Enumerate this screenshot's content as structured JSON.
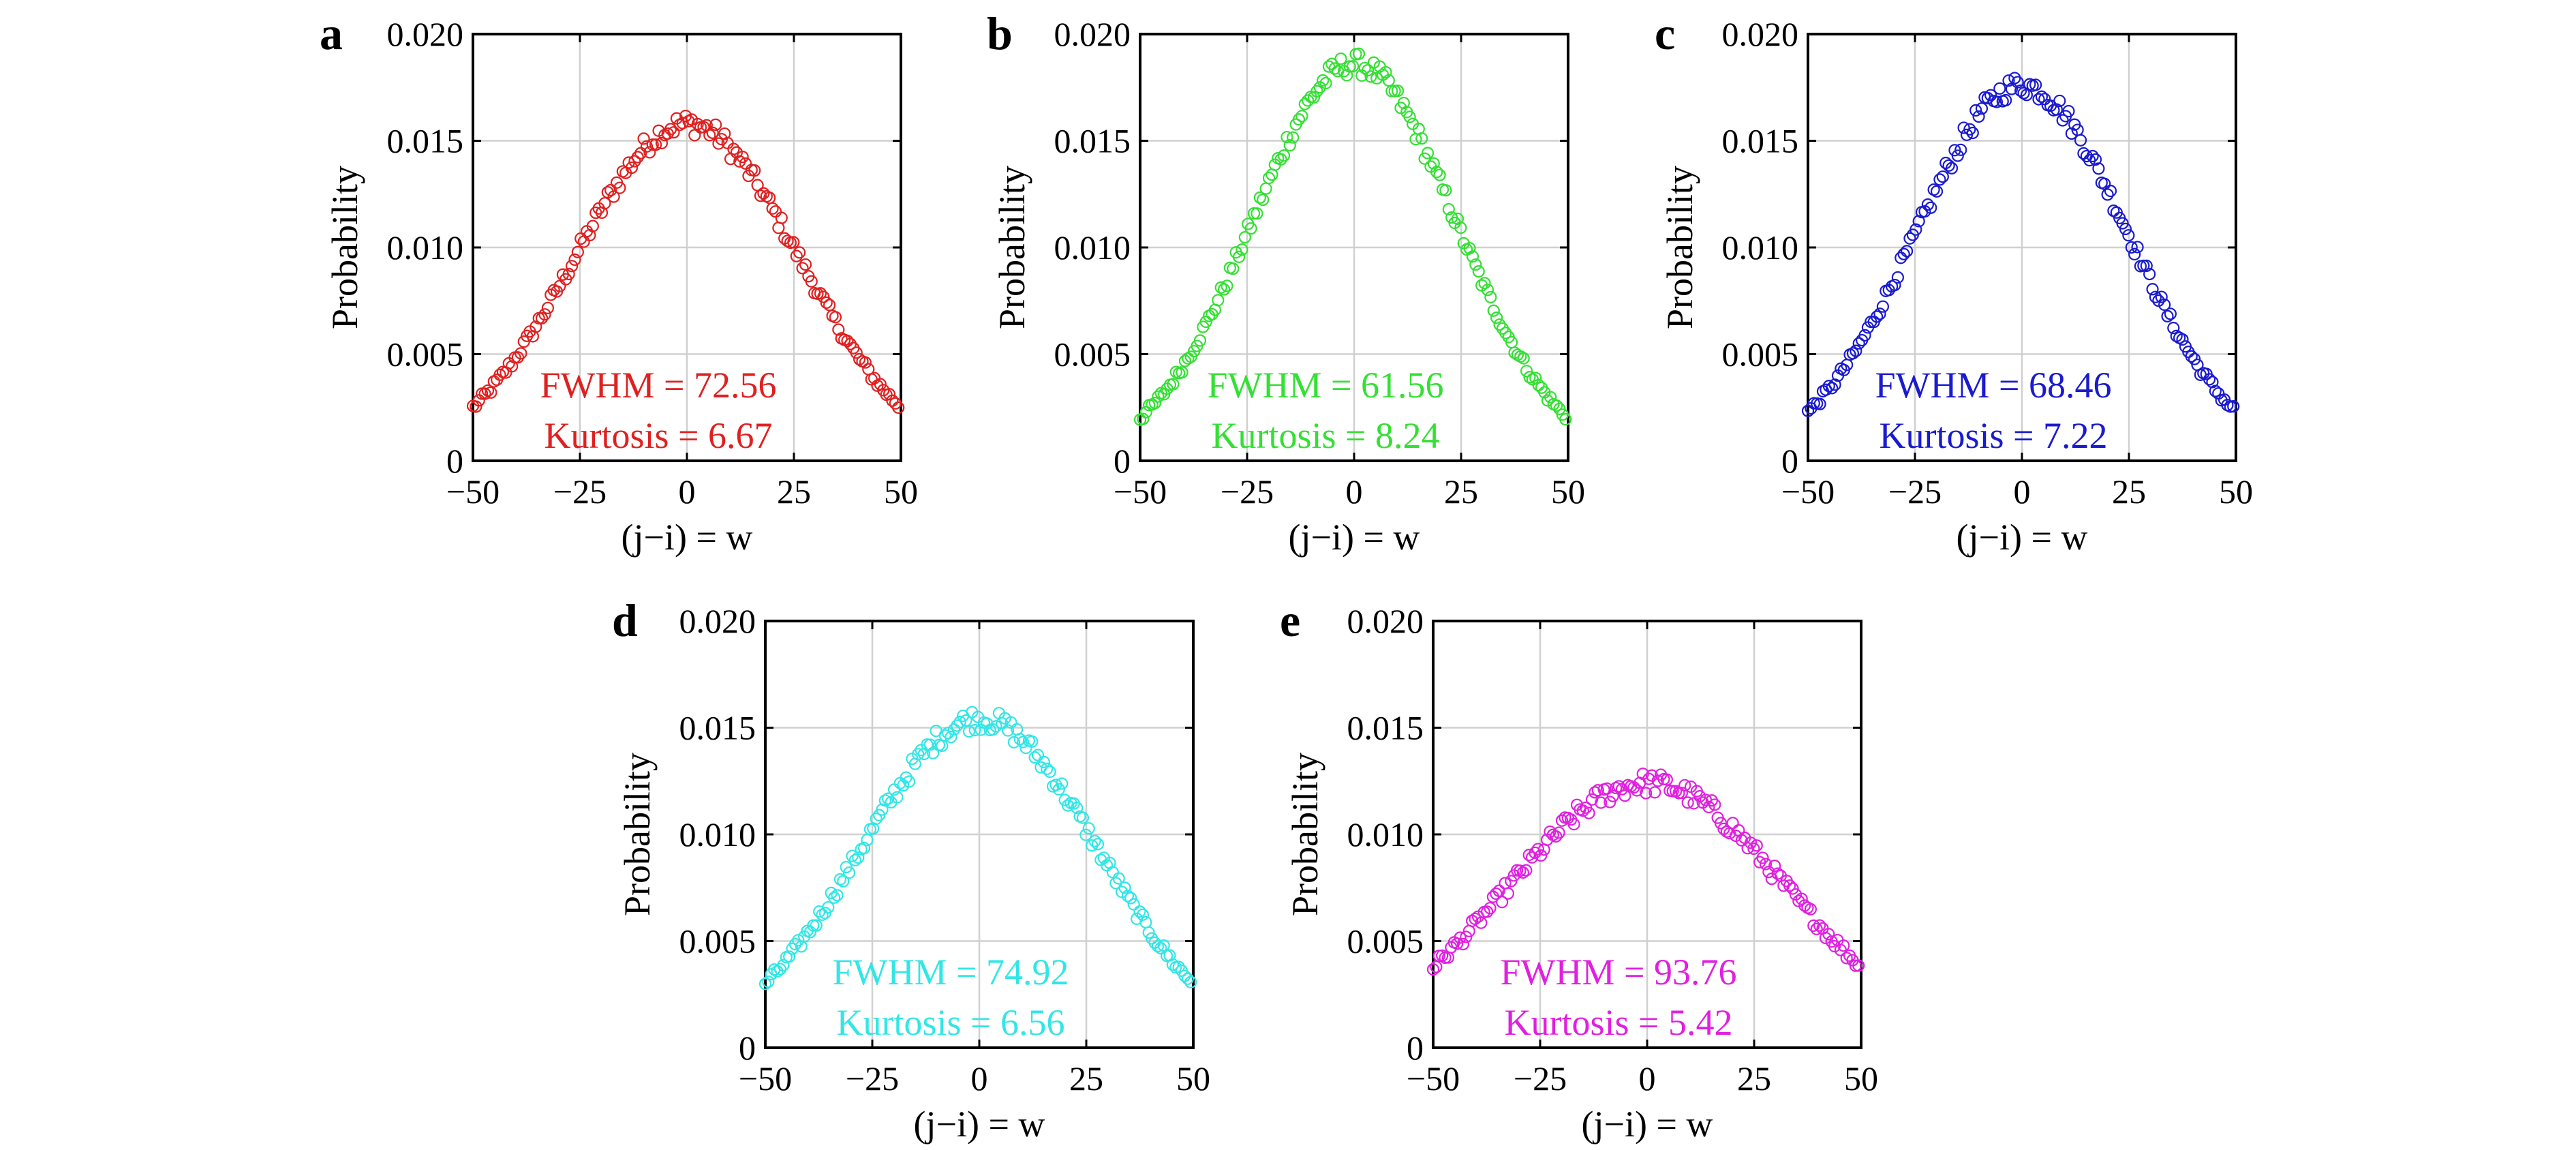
{
  "chart_data": [
    {
      "panel": "a",
      "type": "scatter",
      "xlabel": "(j−i) = w",
      "ylabel": "Probability",
      "xlim": [
        -50,
        50
      ],
      "ylim": [
        0,
        0.02
      ],
      "xticks": [
        "−50",
        "−25",
        "0",
        "25",
        "50"
      ],
      "yticks": [
        "0",
        "0.005",
        "0.010",
        "0.015",
        "0.020"
      ],
      "grid": true,
      "color": "#e02020",
      "annotations": [
        "FWHM = 72.56",
        "Kurtosis = 6.67"
      ],
      "series": [
        {
          "peak": 0.0158,
          "edge": 0.0025
        }
      ]
    },
    {
      "panel": "b",
      "type": "scatter",
      "xlabel": "(j−i) = w",
      "ylabel": "Probability",
      "xlim": [
        -50,
        50
      ],
      "ylim": [
        0,
        0.02
      ],
      "xticks": [
        "−50",
        "−25",
        "0",
        "25",
        "50"
      ],
      "yticks": [
        "0",
        "0.005",
        "0.010",
        "0.015",
        "0.020"
      ],
      "grid": true,
      "color": "#33e033",
      "annotations": [
        "FWHM = 61.56",
        "Kurtosis = 8.24"
      ],
      "series": [
        {
          "peak": 0.0186,
          "edge": 0.002
        }
      ]
    },
    {
      "panel": "c",
      "type": "scatter",
      "xlabel": "(j−i) = w",
      "ylabel": "Probability",
      "xlim": [
        -50,
        50
      ],
      "ylim": [
        0,
        0.02
      ],
      "xticks": [
        "−50",
        "−25",
        "0",
        "25",
        "50"
      ],
      "yticks": [
        "0",
        "0.005",
        "0.010",
        "0.015",
        "0.020"
      ],
      "grid": true,
      "color": "#1a1ad0",
      "annotations": [
        "FWHM = 68.46",
        "Kurtosis = 7.22"
      ],
      "series": [
        {
          "peak": 0.0176,
          "edge": 0.0023
        }
      ]
    },
    {
      "panel": "d",
      "type": "scatter",
      "xlabel": "(j−i) = w",
      "ylabel": "Probability",
      "xlim": [
        -50,
        50
      ],
      "ylim": [
        0,
        0.02
      ],
      "xticks": [
        "−50",
        "−25",
        "0",
        "25",
        "50"
      ],
      "yticks": [
        "0",
        "0.005",
        "0.010",
        "0.015",
        "0.020"
      ],
      "grid": true,
      "color": "#33e6e6",
      "annotations": [
        "FWHM = 74.92",
        "Kurtosis = 6.56"
      ],
      "series": [
        {
          "peak": 0.0154,
          "edge": 0.003
        }
      ]
    },
    {
      "panel": "e",
      "type": "scatter",
      "xlabel": "(j−i) = w",
      "ylabel": "Probability",
      "xlim": [
        -50,
        50
      ],
      "ylim": [
        0,
        0.02
      ],
      "xticks": [
        "−50",
        "−25",
        "0",
        "25",
        "50"
      ],
      "yticks": [
        "0",
        "0.005",
        "0.010",
        "0.015",
        "0.020"
      ],
      "grid": true,
      "color": "#e020e0",
      "annotations": [
        "FWHM = 93.76",
        "Kurtosis = 5.42"
      ],
      "series": [
        {
          "peak": 0.0124,
          "edge": 0.0038
        }
      ]
    }
  ]
}
